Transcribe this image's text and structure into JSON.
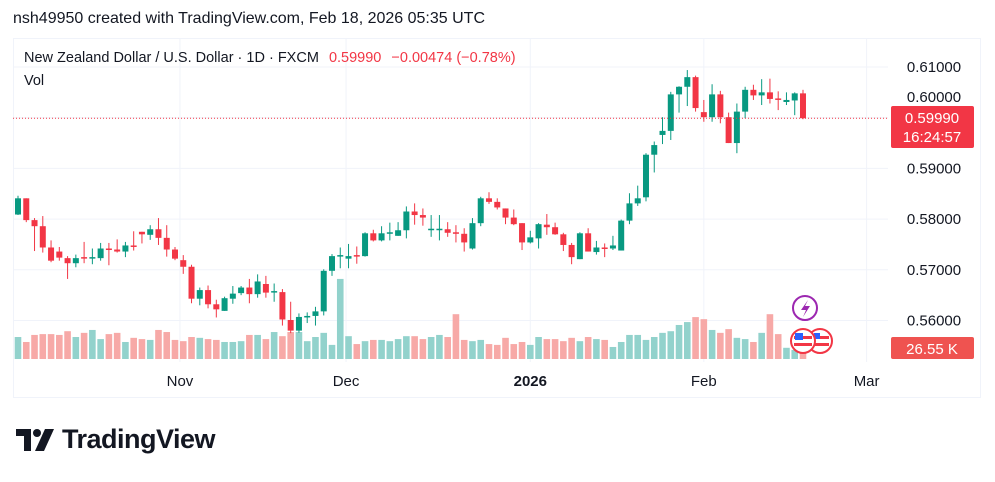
{
  "attribution": "nsh49950 created with TradingView.com, Feb 18, 2026 05:35 UTC",
  "legend": {
    "symbol": "New Zealand Dollar / U.S. Dollar · 1D · FXCM",
    "last": "0.59990",
    "change": "−0.00474 (−0.78%)",
    "volume_label": "Vol"
  },
  "price_label": {
    "price": "0.59990",
    "countdown": "16:24:57"
  },
  "volume_label": "26.55 K",
  "logo_text": "TradingView",
  "colors": {
    "up": "#089981",
    "down": "#f23645",
    "vol_up": "#92d2cc",
    "vol_down": "#f7a9a7",
    "event": "#9c27b0"
  },
  "icons": [
    "lightning-event-icon",
    "us-flag-icon",
    "us-flag-icon"
  ],
  "chart_data": {
    "type": "candlestick",
    "title": "New Zealand Dollar / U.S. Dollar · 1D · FXCM",
    "ylim": [
      0.554,
      0.6125
    ],
    "grid": true,
    "y_ticks": [
      "0.61000",
      "0.60000",
      "0.59000",
      "0.58000",
      "0.57000",
      "0.56000"
    ],
    "y_tick_values": [
      0.61,
      0.6,
      0.59,
      0.58,
      0.57,
      0.56
    ],
    "x_ticks": [
      {
        "label": "Nov",
        "bar": 19.6,
        "bold": false
      },
      {
        "label": "Dec",
        "bar": 39.7,
        "bold": false
      },
      {
        "label": "2026",
        "bar": 62,
        "bold": true
      },
      {
        "label": "Feb",
        "bar": 83,
        "bold": false
      },
      {
        "label": "Mar",
        "bar": 102.7,
        "bold": false
      }
    ],
    "ohlc": [
      [
        0.5809,
        0.5846,
        0.5808,
        0.5841
      ],
      [
        0.5841,
        0.5841,
        0.5794,
        0.5798
      ],
      [
        0.5798,
        0.5802,
        0.5737,
        0.5786
      ],
      [
        0.5786,
        0.5806,
        0.5734,
        0.5744
      ],
      [
        0.5744,
        0.5758,
        0.5715,
        0.5718
      ],
      [
        0.5736,
        0.5745,
        0.5718,
        0.5724
      ],
      [
        0.5723,
        0.5727,
        0.5682,
        0.5713
      ],
      [
        0.5713,
        0.573,
        0.5705,
        0.5723
      ],
      [
        0.5725,
        0.5755,
        0.5713,
        0.5724
      ],
      [
        0.5724,
        0.5742,
        0.5711,
        0.5725
      ],
      [
        0.5723,
        0.5753,
        0.5718,
        0.5742
      ],
      [
        0.5742,
        0.5753,
        0.5709,
        0.574
      ],
      [
        0.574,
        0.576,
        0.5734,
        0.5736
      ],
      [
        0.5736,
        0.5755,
        0.5725,
        0.5748
      ],
      [
        0.5748,
        0.5776,
        0.5738,
        0.5746
      ],
      [
        0.5775,
        0.5775,
        0.5752,
        0.577
      ],
      [
        0.5769,
        0.5788,
        0.5759,
        0.578
      ],
      [
        0.578,
        0.5802,
        0.5749,
        0.5763
      ],
      [
        0.5763,
        0.5788,
        0.5726,
        0.574
      ],
      [
        0.574,
        0.5745,
        0.5719,
        0.5722
      ],
      [
        0.5719,
        0.5729,
        0.5692,
        0.5706
      ],
      [
        0.5706,
        0.571,
        0.5634,
        0.5643
      ],
      [
        0.5643,
        0.5665,
        0.563,
        0.566
      ],
      [
        0.566,
        0.5669,
        0.5624,
        0.5632
      ],
      [
        0.5632,
        0.5641,
        0.5606,
        0.5622
      ],
      [
        0.5619,
        0.5647,
        0.5619,
        0.5644
      ],
      [
        0.5643,
        0.5668,
        0.5633,
        0.5653
      ],
      [
        0.5654,
        0.5668,
        0.565,
        0.5665
      ],
      [
        0.5665,
        0.5682,
        0.5634,
        0.5652
      ],
      [
        0.5652,
        0.5691,
        0.5645,
        0.5677
      ],
      [
        0.5672,
        0.5688,
        0.5645,
        0.5655
      ],
      [
        0.5656,
        0.5673,
        0.5637,
        0.5658
      ],
      [
        0.5656,
        0.5662,
        0.559,
        0.5602
      ],
      [
        0.5601,
        0.5637,
        0.5575,
        0.558
      ],
      [
        0.558,
        0.5614,
        0.5576,
        0.5607
      ],
      [
        0.5606,
        0.5616,
        0.5595,
        0.5609
      ],
      [
        0.5609,
        0.5627,
        0.559,
        0.5618
      ],
      [
        0.5618,
        0.5701,
        0.561,
        0.5698
      ],
      [
        0.5698,
        0.5731,
        0.5688,
        0.5727
      ],
      [
        0.5728,
        0.5744,
        0.5703,
        0.5729
      ],
      [
        0.5722,
        0.5751,
        0.5703,
        0.5727
      ],
      [
        0.5729,
        0.5746,
        0.5712,
        0.5728
      ],
      [
        0.5727,
        0.5774,
        0.5726,
        0.5772
      ],
      [
        0.5772,
        0.5779,
        0.5756,
        0.5758
      ],
      [
        0.5758,
        0.5786,
        0.5756,
        0.5772
      ],
      [
        0.5772,
        0.5793,
        0.5758,
        0.5774
      ],
      [
        0.5767,
        0.5794,
        0.5767,
        0.5778
      ],
      [
        0.5778,
        0.5825,
        0.5762,
        0.5815
      ],
      [
        0.5815,
        0.5831,
        0.5789,
        0.5808
      ],
      [
        0.5808,
        0.5821,
        0.5787,
        0.5803
      ],
      [
        0.5779,
        0.5808,
        0.5765,
        0.5781
      ],
      [
        0.578,
        0.5808,
        0.5758,
        0.5781
      ],
      [
        0.578,
        0.5794,
        0.5765,
        0.5773
      ],
      [
        0.5774,
        0.5788,
        0.5754,
        0.5771
      ],
      [
        0.5771,
        0.5782,
        0.5736,
        0.5754
      ],
      [
        0.5742,
        0.5802,
        0.574,
        0.5792
      ],
      [
        0.5792,
        0.5844,
        0.5786,
        0.5841
      ],
      [
        0.5841,
        0.5853,
        0.583,
        0.5834
      ],
      [
        0.5834,
        0.5841,
        0.5819,
        0.5823
      ],
      [
        0.5821,
        0.5821,
        0.579,
        0.5803
      ],
      [
        0.5803,
        0.5819,
        0.5788,
        0.579
      ],
      [
        0.5792,
        0.5792,
        0.5739,
        0.5754
      ],
      [
        0.5754,
        0.5777,
        0.5752,
        0.5764
      ],
      [
        0.5762,
        0.5792,
        0.5742,
        0.579
      ],
      [
        0.5789,
        0.581,
        0.5769,
        0.5784
      ],
      [
        0.5784,
        0.5793,
        0.5769,
        0.577
      ],
      [
        0.577,
        0.5773,
        0.5737,
        0.5749
      ],
      [
        0.5749,
        0.5753,
        0.5711,
        0.5725
      ],
      [
        0.5721,
        0.5774,
        0.5721,
        0.5772
      ],
      [
        0.5772,
        0.5782,
        0.5736,
        0.5736
      ],
      [
        0.5735,
        0.5757,
        0.573,
        0.5744
      ],
      [
        0.5744,
        0.5752,
        0.5725,
        0.5742
      ],
      [
        0.5742,
        0.5767,
        0.5739,
        0.5748
      ],
      [
        0.5738,
        0.5799,
        0.5738,
        0.5797
      ],
      [
        0.5797,
        0.5851,
        0.579,
        0.5831
      ],
      [
        0.5831,
        0.5866,
        0.5826,
        0.5841
      ],
      [
        0.5843,
        0.593,
        0.5835,
        0.5927
      ],
      [
        0.5927,
        0.5953,
        0.5892,
        0.5946
      ],
      [
        0.5966,
        0.6001,
        0.5948,
        0.5974
      ],
      [
        0.5974,
        0.6051,
        0.5956,
        0.6046
      ],
      [
        0.6046,
        0.6062,
        0.601,
        0.6061
      ],
      [
        0.6061,
        0.6094,
        0.6023,
        0.608
      ],
      [
        0.608,
        0.6083,
        0.6012,
        0.6019
      ],
      [
        0.6011,
        0.6035,
        0.5992,
        0.6001
      ],
      [
        0.6001,
        0.6066,
        0.5992,
        0.6046
      ],
      [
        0.6046,
        0.6053,
        0.5989,
        0.6001
      ],
      [
        0.6001,
        0.601,
        0.595,
        0.595
      ],
      [
        0.595,
        0.6028,
        0.593,
        0.6012
      ],
      [
        0.6012,
        0.6061,
        0.5999,
        0.6055
      ],
      [
        0.6055,
        0.6065,
        0.6035,
        0.6044
      ],
      [
        0.6044,
        0.6076,
        0.6025,
        0.605
      ],
      [
        0.605,
        0.6077,
        0.6028,
        0.6037
      ],
      [
        0.6038,
        0.6052,
        0.6015,
        0.6037
      ],
      [
        0.6031,
        0.605,
        0.6025,
        0.6035
      ],
      [
        0.6034,
        0.605,
        0.6005,
        0.6048
      ],
      [
        0.6048,
        0.6055,
        0.5997,
        0.5999
      ]
    ],
    "volume_k": [
      53,
      41,
      58,
      60,
      60,
      58,
      67,
      53,
      63,
      70,
      48,
      60,
      63,
      41,
      51,
      48,
      46,
      70,
      65,
      46,
      43,
      53,
      51,
      48,
      46,
      41,
      41,
      43,
      58,
      58,
      48,
      65,
      55,
      65,
      65,
      43,
      53,
      63,
      34,
      193,
      55,
      36,
      43,
      46,
      46,
      43,
      48,
      55,
      55,
      48,
      53,
      58,
      53,
      108,
      46,
      43,
      46,
      36,
      34,
      51,
      36,
      41,
      34,
      53,
      48,
      48,
      43,
      51,
      43,
      53,
      48,
      46,
      29,
      41,
      58,
      58,
      46,
      53,
      63,
      67,
      82,
      89,
      101,
      96,
      70,
      63,
      72,
      51,
      48,
      41,
      63,
      108,
      60,
      27,
      22,
      26.55
    ]
  }
}
